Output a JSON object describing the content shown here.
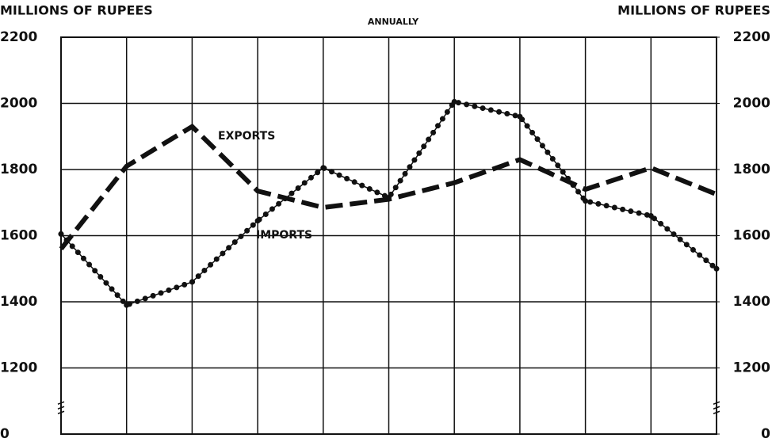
{
  "chart_data": {
    "type": "line",
    "title": "ANNUALLY",
    "y_label": "MILLIONS OF RUPEES",
    "y2_label": "MILLIONS OF RUPEES",
    "categories": [
      null,
      null,
      null,
      null,
      null,
      null,
      null,
      null,
      null,
      null,
      null
    ],
    "series": [
      {
        "name": "EXPORTS",
        "color": "#111111",
        "style": "dashed",
        "values": [
          1560,
          1810,
          1930,
          1735,
          1685,
          1710,
          1760,
          1830,
          1740,
          1805,
          1725
        ]
      },
      {
        "name": "IMPORTS",
        "color": "#111111",
        "style": "dotted",
        "values": [
          1605,
          1390,
          1460,
          1645,
          1805,
          1715,
          2005,
          1960,
          1705,
          1660,
          1500
        ]
      }
    ],
    "ylim": [
      0,
      2200
    ],
    "yticks": [
      0,
      1200,
      1400,
      1600,
      1800,
      2000,
      2200
    ],
    "y2lim": [
      0,
      2200
    ],
    "y2ticks": [
      0,
      1200,
      1400,
      1600,
      1800,
      2000,
      2200
    ],
    "axis_break": true,
    "grid": true
  }
}
